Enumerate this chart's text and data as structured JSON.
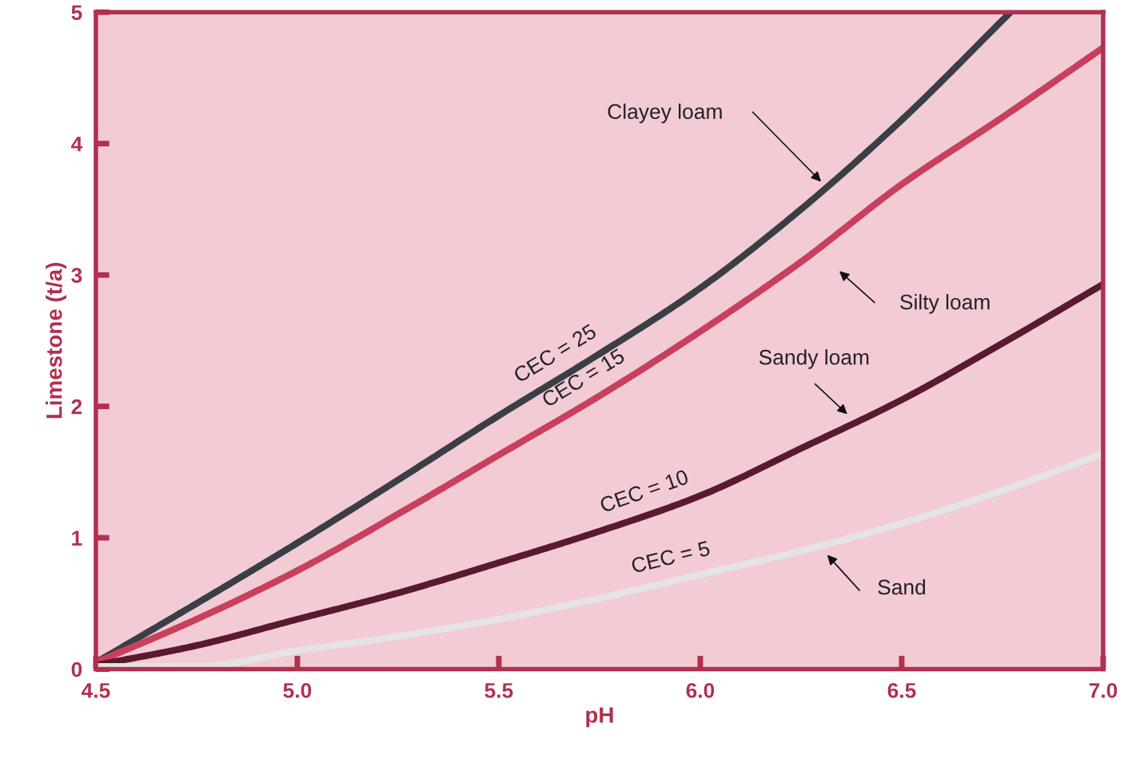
{
  "chart_data": {
    "type": "line",
    "xlabel": "pH",
    "ylabel": "Limestone (t/a)",
    "xlim": [
      4.5,
      7.0
    ],
    "ylim": [
      0,
      5
    ],
    "xticks": [
      {
        "value": 4.5,
        "label": "4.5"
      },
      {
        "value": 5.0,
        "label": "5.0"
      },
      {
        "value": 5.5,
        "label": "5.5"
      },
      {
        "value": 6.0,
        "label": "6.0"
      },
      {
        "value": 6.5,
        "label": "6.5"
      },
      {
        "value": 7.0,
        "label": "7.0"
      }
    ],
    "yticks": [
      0,
      1,
      2,
      3,
      4,
      5
    ],
    "grid": false,
    "legend": false,
    "marker": "none",
    "line_style": "solid",
    "series": [
      {
        "name": "CEC = 25",
        "color": "#3a3f45",
        "x": [
          4.5,
          4.75,
          5.0,
          5.25,
          5.5,
          5.75,
          6.0,
          6.25,
          6.5,
          6.77
        ],
        "values": [
          0.05,
          0.5,
          0.96,
          1.44,
          1.93,
          2.4,
          2.9,
          3.5,
          4.18,
          5.0
        ]
      },
      {
        "name": "CEC = 15",
        "color": "#c8405e",
        "x": [
          4.5,
          4.75,
          5.0,
          5.25,
          5.5,
          5.75,
          6.0,
          6.25,
          6.5,
          6.75,
          7.0
        ],
        "values": [
          0.05,
          0.38,
          0.75,
          1.18,
          1.63,
          2.08,
          2.57,
          3.1,
          3.69,
          4.2,
          4.73
        ]
      },
      {
        "name": "CEC = 10",
        "color": "#5a1a2e",
        "x": [
          4.5,
          4.75,
          5.0,
          5.25,
          5.5,
          5.75,
          6.0,
          6.25,
          6.5,
          6.75,
          7.0
        ],
        "values": [
          0.03,
          0.18,
          0.38,
          0.58,
          0.81,
          1.05,
          1.32,
          1.68,
          2.05,
          2.48,
          2.93
        ]
      },
      {
        "name": "CEC = 5",
        "color": "#e4e4e4",
        "x": [
          4.5,
          4.75,
          5.0,
          5.25,
          5.5,
          5.75,
          6.0,
          6.25,
          6.5,
          6.75,
          7.0
        ],
        "values": [
          0.02,
          0.02,
          0.14,
          0.25,
          0.38,
          0.54,
          0.72,
          0.9,
          1.11,
          1.36,
          1.64
        ]
      }
    ],
    "annotations": [
      "Clayey loam",
      "Silty loam",
      "Sandy loam",
      "Sand"
    ]
  }
}
